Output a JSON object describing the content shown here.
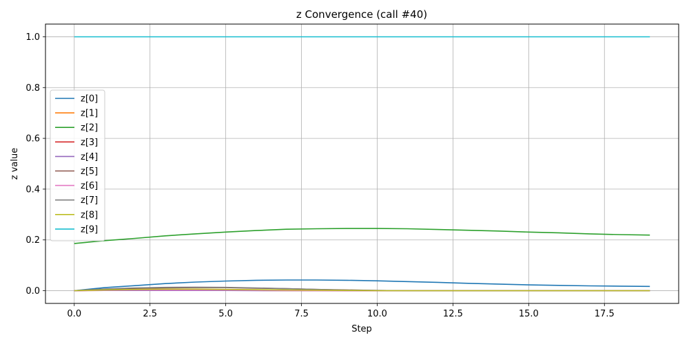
{
  "chart_data": {
    "type": "line",
    "title": "z Convergence (call #40)",
    "xlabel": "Step",
    "ylabel": "z value",
    "xlim": [
      -0.95,
      19.95
    ],
    "ylim": [
      -0.05,
      1.05
    ],
    "xticks": [
      0.0,
      2.5,
      5.0,
      7.5,
      10.0,
      12.5,
      15.0,
      17.5
    ],
    "xtick_labels": [
      "0.0",
      "2.5",
      "5.0",
      "7.5",
      "10.0",
      "12.5",
      "15.0",
      "17.5"
    ],
    "yticks": [
      0.0,
      0.2,
      0.4,
      0.6,
      0.8,
      1.0
    ],
    "ytick_labels": [
      "0.0",
      "0.2",
      "0.4",
      "0.6",
      "0.8",
      "1.0"
    ],
    "grid": true,
    "legend_position": "center-left",
    "x": [
      0,
      1,
      2,
      3,
      4,
      5,
      6,
      7,
      8,
      9,
      10,
      11,
      12,
      13,
      14,
      15,
      16,
      17,
      18,
      19
    ],
    "series": [
      {
        "name": "z[0]",
        "color": "#1f77b4",
        "values": [
          0.0,
          0.012,
          0.02,
          0.028,
          0.034,
          0.038,
          0.041,
          0.042,
          0.042,
          0.041,
          0.039,
          0.036,
          0.033,
          0.029,
          0.026,
          0.023,
          0.021,
          0.019,
          0.018,
          0.017
        ]
      },
      {
        "name": "z[1]",
        "color": "#ff7f0e",
        "values": [
          0.0,
          0.001,
          0.001,
          0.001,
          0.001,
          0.001,
          0.001,
          0.0,
          0.0,
          0.0,
          0.0,
          0.0,
          0.0,
          0.0,
          0.0,
          0.0,
          0.0,
          0.0,
          0.0,
          0.0
        ]
      },
      {
        "name": "z[2]",
        "color": "#2ca02c",
        "values": [
          0.186,
          0.197,
          0.206,
          0.216,
          0.224,
          0.231,
          0.237,
          0.242,
          0.244,
          0.245,
          0.245,
          0.244,
          0.241,
          0.238,
          0.235,
          0.231,
          0.228,
          0.224,
          0.221,
          0.219
        ]
      },
      {
        "name": "z[3]",
        "color": "#d62728",
        "values": [
          0.0,
          0.002,
          0.003,
          0.004,
          0.004,
          0.004,
          0.003,
          0.002,
          0.001,
          0.0,
          0.0,
          0.0,
          0.0,
          0.0,
          0.0,
          0.0,
          0.0,
          0.0,
          0.0,
          0.0
        ]
      },
      {
        "name": "z[4]",
        "color": "#9467bd",
        "values": [
          0.0,
          0.001,
          0.001,
          0.001,
          0.001,
          0.001,
          0.0,
          0.0,
          0.0,
          0.0,
          0.0,
          0.0,
          0.0,
          0.0,
          0.0,
          0.0,
          0.0,
          0.0,
          0.0,
          0.0
        ]
      },
      {
        "name": "z[5]",
        "color": "#8c564b",
        "values": [
          0.0,
          0.006,
          0.009,
          0.011,
          0.012,
          0.012,
          0.01,
          0.008,
          0.005,
          0.003,
          0.001,
          0.0,
          0.0,
          0.0,
          0.0,
          0.0,
          0.0,
          0.0,
          0.0,
          0.0
        ]
      },
      {
        "name": "z[6]",
        "color": "#e377c2",
        "values": [
          0.0,
          0.002,
          0.003,
          0.003,
          0.003,
          0.003,
          0.002,
          0.001,
          0.0,
          0.0,
          0.0,
          0.0,
          0.0,
          0.0,
          0.0,
          0.0,
          0.0,
          0.0,
          0.0,
          0.0
        ]
      },
      {
        "name": "z[7]",
        "color": "#7f7f7f",
        "values": [
          0.0,
          0.007,
          0.011,
          0.013,
          0.014,
          0.013,
          0.011,
          0.008,
          0.005,
          0.002,
          0.001,
          0.0,
          0.0,
          0.0,
          0.0,
          0.0,
          0.0,
          0.0,
          0.0,
          0.0
        ]
      },
      {
        "name": "z[8]",
        "color": "#bcbd22",
        "values": [
          0.0,
          0.003,
          0.005,
          0.006,
          0.006,
          0.005,
          0.004,
          0.003,
          0.002,
          0.001,
          0.0,
          0.0,
          0.0,
          0.0,
          0.0,
          0.0,
          0.0,
          0.0,
          0.0,
          0.0
        ]
      },
      {
        "name": "z[9]",
        "color": "#17becf",
        "values": [
          1.0,
          1.0,
          1.0,
          1.0,
          1.0,
          1.0,
          1.0,
          1.0,
          1.0,
          1.0,
          1.0,
          1.0,
          1.0,
          1.0,
          1.0,
          1.0,
          1.0,
          1.0,
          1.0,
          1.0
        ]
      }
    ]
  }
}
